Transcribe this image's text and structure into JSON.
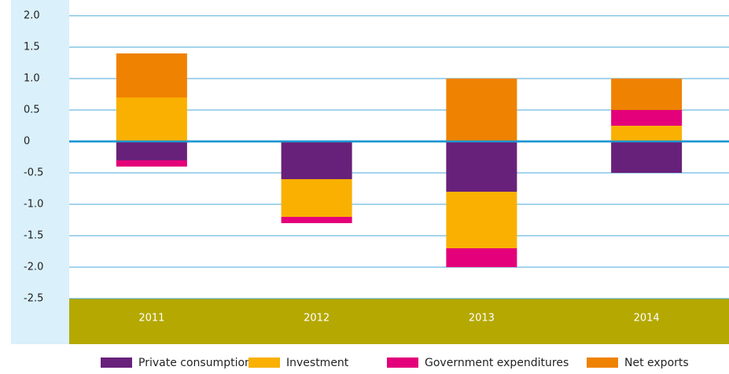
{
  "chart_data": {
    "type": "stacked_bar",
    "categories": [
      "2011",
      "2012",
      "2013",
      "2014"
    ],
    "series": [
      {
        "name": "Private consumption",
        "color": "#68217a",
        "values": [
          -0.3,
          -0.6,
          -0.8,
          -0.5
        ]
      },
      {
        "name": "Investment",
        "color": "#f9b000",
        "values": [
          0.7,
          -0.6,
          -0.9,
          0.25
        ]
      },
      {
        "name": "Government expenditures",
        "color": "#e3007a",
        "values": [
          -0.1,
          -0.1,
          -0.3,
          0.25
        ]
      },
      {
        "name": "Net exports",
        "color": "#ef8200",
        "values": [
          0.7,
          0,
          1.0,
          0.5
        ]
      }
    ],
    "ylim": [
      -2.5,
      2
    ],
    "yticks": [
      {
        "value": 2,
        "label": "2.0"
      },
      1.5,
      {
        "value": 1,
        "label": "1.0"
      },
      0.5,
      0,
      -0.5,
      {
        "value": -1,
        "label": "-1.0"
      },
      -1.5,
      {
        "value": -2,
        "label": "-2.0"
      },
      -2.5
    ],
    "grid": true
  }
}
